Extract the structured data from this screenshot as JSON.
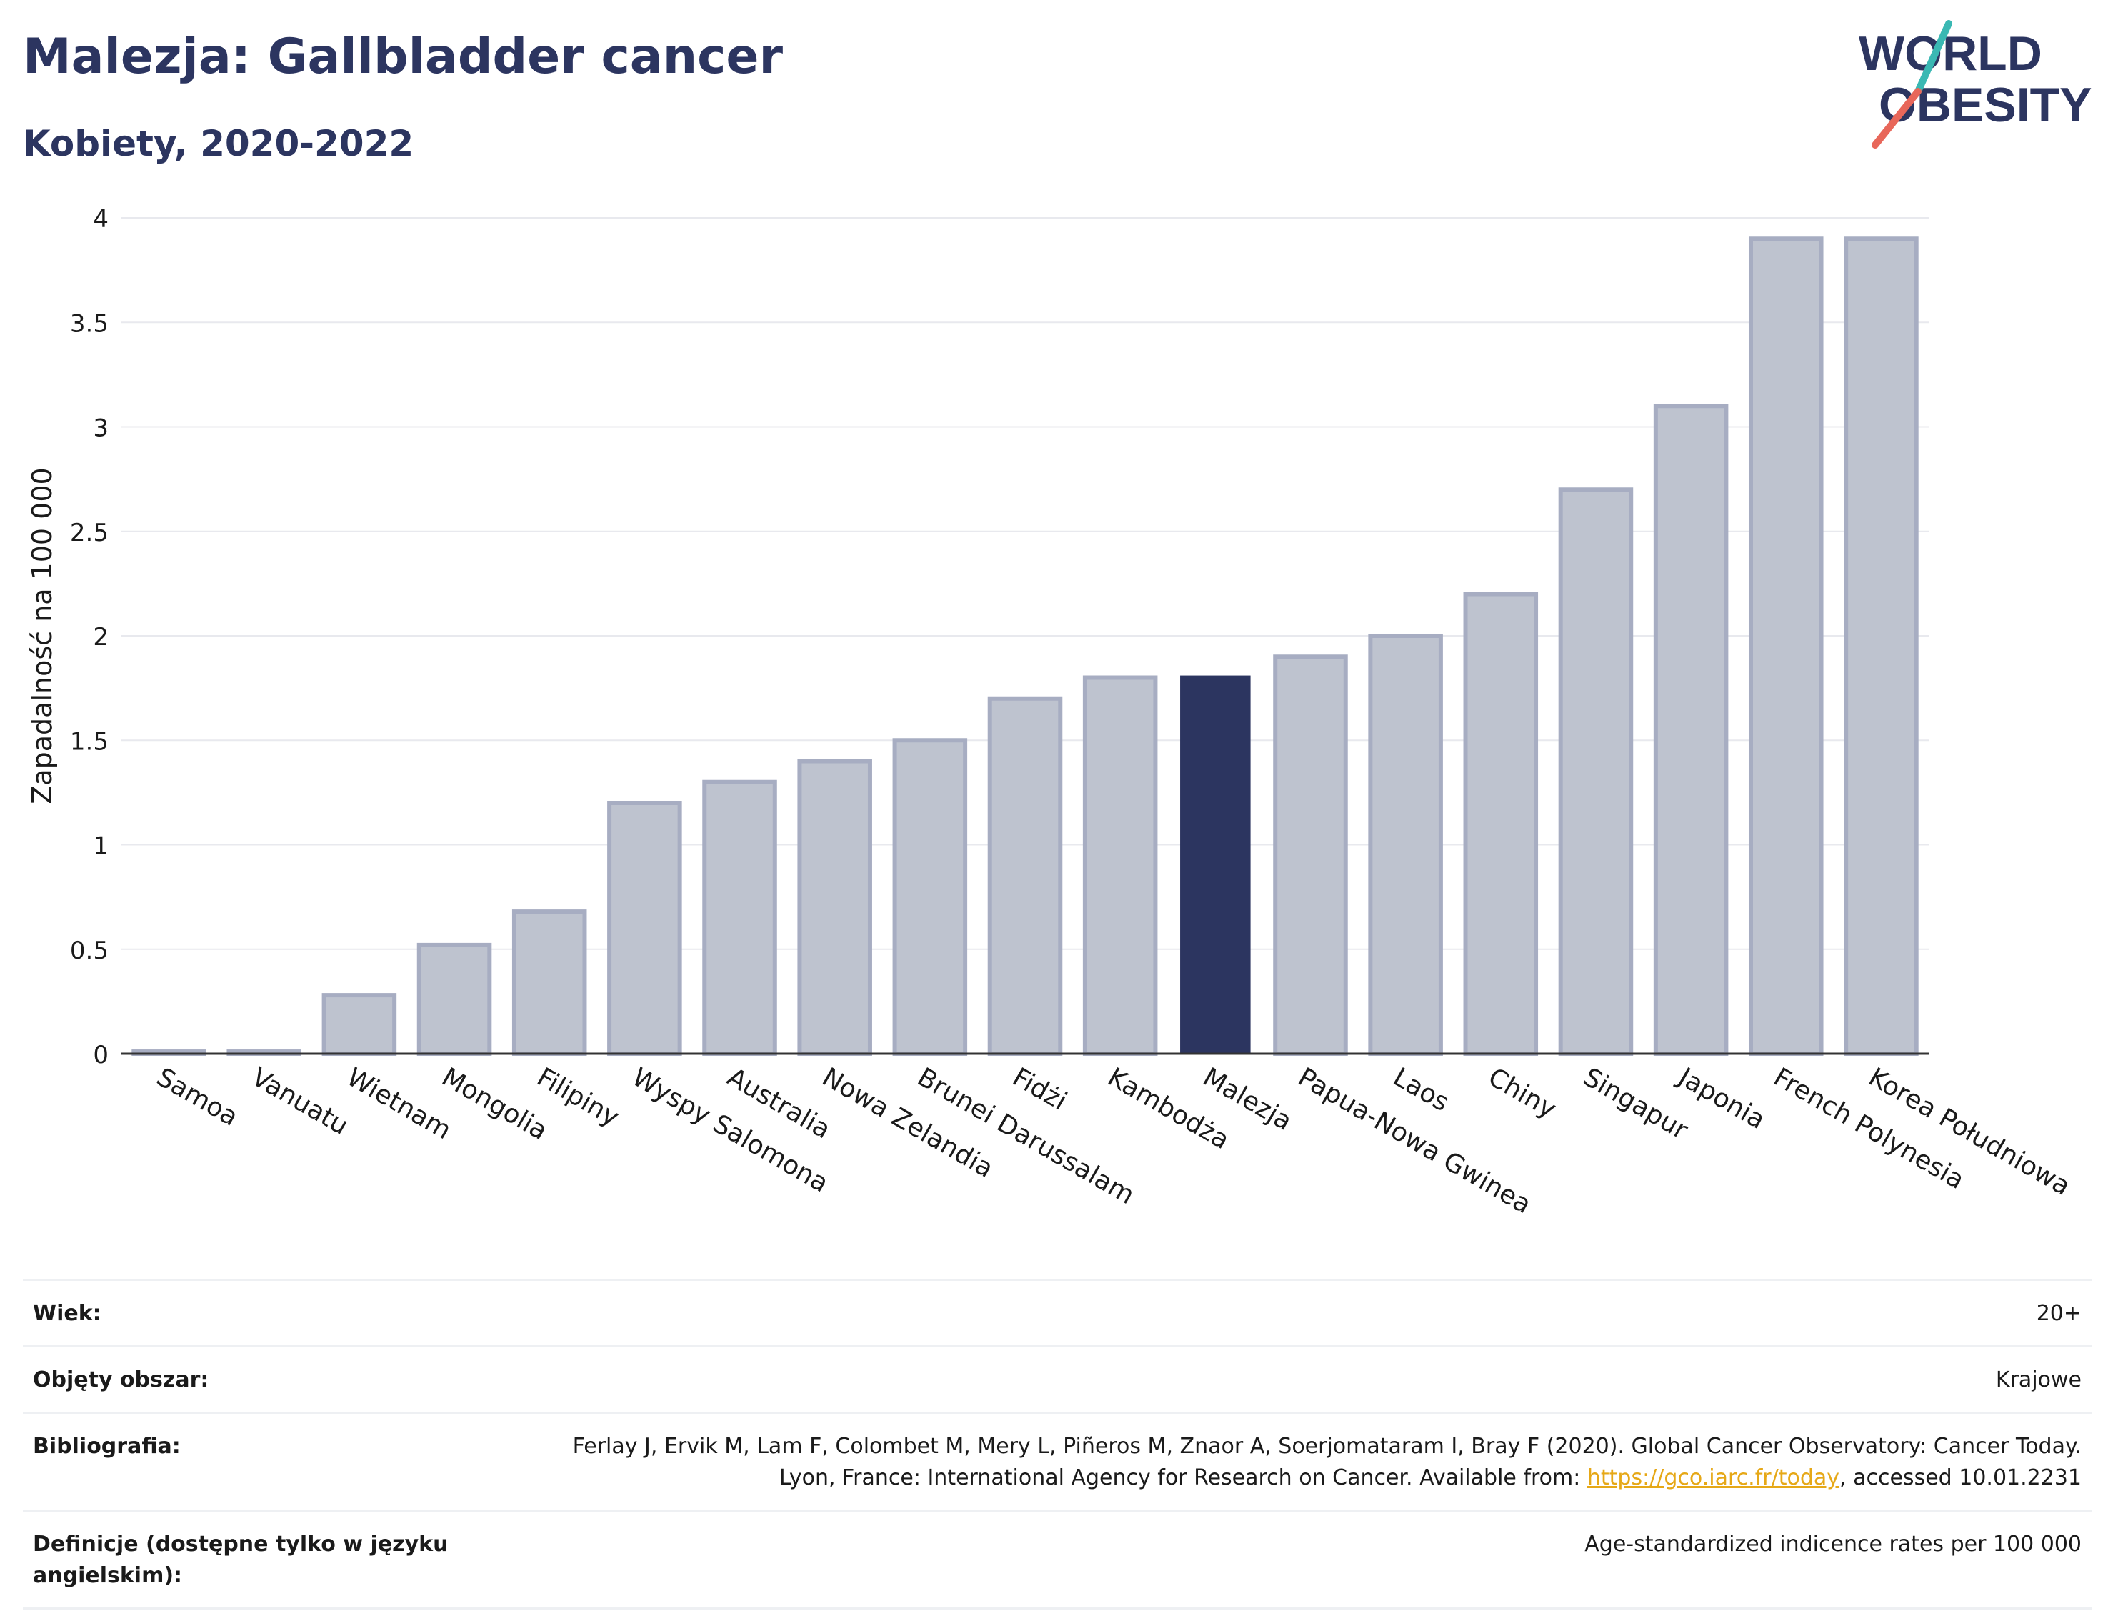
{
  "header": {
    "title": "Malezja: Gallbladder cancer",
    "subtitle": "Kobiety, 2020-2022"
  },
  "logo": {
    "line1": "WORLD",
    "line2": "OBESITY"
  },
  "colors": {
    "bar": "#bec3cf",
    "bar_border": "#a7adc2",
    "highlight": "#2c3560",
    "grid": "#e8e9ee",
    "axis": "#333333",
    "logo_teal": "#3ab8b3",
    "logo_red": "#e8675a"
  },
  "chart_data": {
    "type": "bar",
    "ylabel": "Zapadalność na 100 000",
    "ylim": [
      0,
      4
    ],
    "yticks": [
      0,
      0.5,
      1,
      1.5,
      2,
      2.5,
      3,
      3.5,
      4
    ],
    "ytick_labels": [
      "0",
      "0.5",
      "1",
      "1.5",
      "2",
      "2.5",
      "3",
      "3.5",
      "4"
    ],
    "grid": true,
    "highlight": "Malezja",
    "categories": [
      "Samoa",
      "Vanuatu",
      "Wietnam",
      "Mongolia",
      "Filipiny",
      "Wyspy Salomona",
      "Australia",
      "Nowa Zelandia",
      "Brunei Darussalam",
      "Fidżi",
      "Kambodża",
      "Malezja",
      "Papua-Nowa Gwinea",
      "Laos",
      "Chiny",
      "Singapur",
      "Japonia",
      "French Polynesia",
      "Korea Południowa"
    ],
    "values": [
      0.01,
      0.01,
      0.28,
      0.52,
      0.68,
      1.2,
      1.3,
      1.4,
      1.5,
      1.7,
      1.8,
      1.81,
      1.9,
      2.0,
      2.2,
      2.7,
      3.1,
      3.9,
      3.9
    ]
  },
  "meta": {
    "rows": [
      {
        "label": "Wiek:",
        "value": "20+"
      },
      {
        "label": "Objęty obszar:",
        "value": "Krajowe"
      },
      {
        "label": "Bibliografia:",
        "value_before": "Ferlay J, Ervik M, Lam F, Colombet M, Mery L, Piñeros M, Znaor A, Soerjomataram I, Bray F (2020). Global Cancer Observatory: Cancer Today. Lyon, France: International Agency for Research on Cancer. Available from: ",
        "link": "https://gco.iarc.fr/today",
        "value_after": ", accessed 10.01.2231"
      },
      {
        "label": "Definicje (dostępne tylko w języku angielskim):",
        "value": "Age-standardized indicence rates per 100 000"
      }
    ]
  }
}
